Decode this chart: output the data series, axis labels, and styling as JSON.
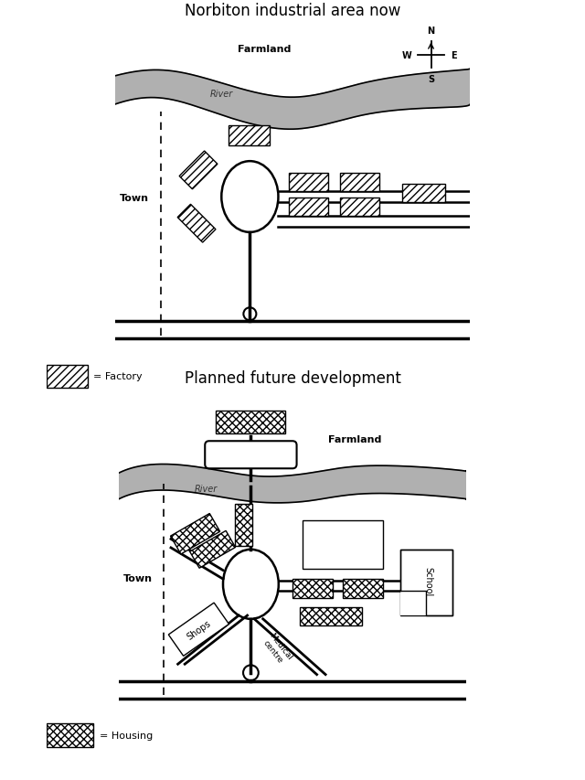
{
  "fig_width": 6.4,
  "fig_height": 8.54,
  "bg_color": "#ffffff",
  "title1": "Norbiton industrial area now",
  "title2": "Planned future development",
  "map1_legend": "= Factory",
  "map2_legend": "= Housing"
}
